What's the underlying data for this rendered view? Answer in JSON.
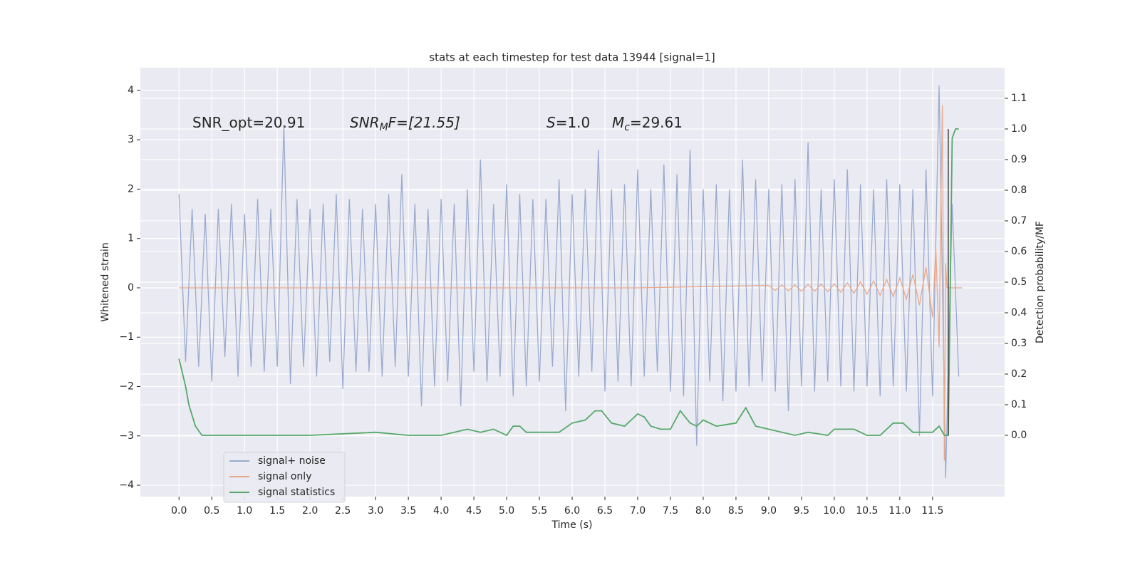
{
  "chart_data": {
    "type": "line",
    "title": "stats at each timestep for test data 13944 [signal=1]",
    "xlabel": "Time (s)",
    "ylabel": "Whitened strain",
    "y2label": "Detection probability/MF",
    "annotations": [
      {
        "base": "SNR_opt=20.91"
      },
      {
        "base": "SNR",
        "sub": "M",
        "rest": "F=[21.55]"
      },
      {
        "base": "S",
        "rest": "=1.0"
      },
      {
        "base": "M",
        "sub": "c",
        "rest": "=29.61"
      }
    ],
    "xlim": [
      -0.59,
      12.6
    ],
    "ylim": [
      -4.23,
      4.46
    ],
    "y2lim": [
      -0.2,
      1.2
    ],
    "xticks": [
      {
        "value": 0,
        "label": "0.0"
      },
      0.5,
      {
        "value": 1,
        "label": "1.0"
      },
      1.5,
      {
        "value": 2,
        "label": "2.0"
      },
      2.5,
      {
        "value": 3,
        "label": "3.0"
      },
      3.5,
      {
        "value": 4,
        "label": "4.0"
      },
      4.5,
      {
        "value": 5,
        "label": "5.0"
      },
      5.5,
      {
        "value": 6,
        "label": "6.0"
      },
      6.5,
      {
        "value": 7,
        "label": "7.0"
      },
      7.5,
      {
        "value": 8,
        "label": "8.0"
      },
      8.5,
      {
        "value": 9,
        "label": "9.0"
      },
      9.5,
      {
        "value": 10,
        "label": "10.0"
      },
      10.5,
      {
        "value": 11,
        "label": "11.0"
      },
      11.5
    ],
    "yticks": [
      {
        "value": -4,
        "label": "−4"
      },
      {
        "value": -3,
        "label": "−3"
      },
      {
        "value": -2,
        "label": "−2"
      },
      {
        "value": -1,
        "label": "−1"
      },
      0,
      1,
      2,
      3,
      4
    ],
    "y2ticks": [
      {
        "value": 0,
        "label": "0.0"
      },
      0.1,
      0.2,
      0.3,
      0.4,
      0.5,
      0.6,
      0.7,
      0.8,
      0.9,
      {
        "value": 1,
        "label": "1.0"
      },
      1.1
    ],
    "grid": true,
    "legend": "lower left",
    "series": [
      {
        "name": "signal+ noise",
        "color": "#9aabd0",
        "x": [
          0.0,
          0.1,
          0.2,
          0.3,
          0.4,
          0.5,
          0.6,
          0.7,
          0.8,
          0.9,
          1.0,
          1.1,
          1.2,
          1.3,
          1.4,
          1.5,
          1.6,
          1.7,
          1.8,
          1.9,
          2.0,
          2.1,
          2.2,
          2.3,
          2.4,
          2.5,
          2.6,
          2.7,
          2.8,
          2.9,
          3.0,
          3.1,
          3.2,
          3.3,
          3.4,
          3.5,
          3.6,
          3.7,
          3.8,
          3.9,
          4.0,
          4.1,
          4.2,
          4.3,
          4.4,
          4.5,
          4.6,
          4.7,
          4.8,
          4.9,
          5.0,
          5.1,
          5.2,
          5.3,
          5.4,
          5.5,
          5.6,
          5.7,
          5.8,
          5.9,
          6.0,
          6.1,
          6.2,
          6.3,
          6.4,
          6.5,
          6.6,
          6.7,
          6.8,
          6.9,
          7.0,
          7.1,
          7.2,
          7.3,
          7.4,
          7.5,
          7.6,
          7.7,
          7.8,
          7.9,
          8.0,
          8.1,
          8.2,
          8.3,
          8.4,
          8.5,
          8.6,
          8.7,
          8.8,
          8.9,
          9.0,
          9.1,
          9.2,
          9.3,
          9.4,
          9.5,
          9.6,
          9.7,
          9.8,
          9.9,
          10.0,
          10.1,
          10.2,
          10.3,
          10.4,
          10.5,
          10.6,
          10.7,
          10.8,
          10.9,
          11.0,
          11.1,
          11.2,
          11.3,
          11.4,
          11.5,
          11.6,
          11.7,
          11.8,
          11.9
        ],
        "values": [
          1.9,
          -1.5,
          1.6,
          -1.6,
          1.5,
          -1.9,
          1.6,
          -1.4,
          1.7,
          -1.8,
          1.5,
          -1.6,
          1.8,
          -1.7,
          1.6,
          -1.6,
          3.3,
          -1.95,
          1.8,
          -1.6,
          1.6,
          -1.8,
          1.7,
          -1.5,
          1.9,
          -2.05,
          1.8,
          -1.7,
          1.6,
          -1.7,
          1.7,
          -1.8,
          1.9,
          -1.6,
          2.3,
          -1.8,
          1.7,
          -2.4,
          1.6,
          -2.0,
          1.8,
          -1.9,
          1.7,
          -2.4,
          2.0,
          -1.7,
          2.6,
          -1.9,
          1.7,
          -1.8,
          2.1,
          -2.2,
          1.9,
          -2.0,
          1.8,
          -1.9,
          1.8,
          -1.6,
          2.2,
          -2.5,
          1.9,
          -1.8,
          2.0,
          -1.7,
          2.8,
          -2.1,
          2.0,
          -1.9,
          2.1,
          -2.0,
          2.4,
          -1.8,
          2.0,
          -1.7,
          2.5,
          -2.1,
          2.3,
          -2.2,
          2.8,
          -3.2,
          2.0,
          -1.9,
          2.1,
          -2.3,
          2.0,
          -2.1,
          2.6,
          -2.0,
          2.2,
          -1.9,
          2.0,
          -2.1,
          2.1,
          -2.5,
          2.2,
          -2.0,
          2.95,
          -2.1,
          2.0,
          -1.9,
          2.2,
          -2.0,
          2.4,
          -2.1,
          2.1,
          -2.0,
          2.0,
          -2.2,
          2.2,
          -2.0,
          2.1,
          -2.1,
          2.0,
          -3.0,
          2.4,
          -2.2,
          4.1,
          -3.85,
          1.7,
          -1.8
        ]
      },
      {
        "name": "signal only",
        "color": "#e8a98a",
        "x": [
          0.0,
          7.0,
          9.0,
          9.1,
          9.2,
          9.3,
          9.4,
          9.5,
          9.6,
          9.7,
          9.8,
          9.9,
          10.0,
          10.1,
          10.2,
          10.3,
          10.4,
          10.5,
          10.6,
          10.7,
          10.8,
          10.9,
          11.0,
          11.1,
          11.2,
          11.3,
          11.4,
          11.5,
          11.55,
          11.6,
          11.63,
          11.65,
          11.68,
          11.7,
          11.72,
          11.95
        ],
        "values": [
          0,
          0,
          0.05,
          -0.05,
          0.06,
          -0.06,
          0.06,
          -0.07,
          0.07,
          -0.07,
          0.08,
          -0.08,
          0.08,
          -0.09,
          0.1,
          -0.11,
          0.12,
          -0.13,
          0.14,
          -0.15,
          0.17,
          -0.18,
          0.2,
          -0.23,
          0.27,
          -0.35,
          0.42,
          -0.6,
          0.8,
          -1.2,
          2.0,
          3.7,
          -3.5,
          0.5,
          0,
          0
        ]
      },
      {
        "name": "signal statistics",
        "color": "#55a868",
        "axis": "y2",
        "x": [
          0.0,
          0.1,
          0.15,
          0.25,
          0.35,
          0.5,
          1.0,
          2.0,
          3.0,
          3.5,
          4.0,
          4.2,
          4.4,
          4.6,
          4.8,
          5.0,
          5.1,
          5.2,
          5.3,
          5.8,
          6.0,
          6.2,
          6.35,
          6.45,
          6.6,
          6.8,
          7.0,
          7.1,
          7.2,
          7.35,
          7.5,
          7.65,
          7.8,
          7.9,
          8.0,
          8.2,
          8.5,
          8.65,
          8.8,
          9.0,
          9.4,
          9.6,
          9.9,
          10.0,
          10.3,
          10.5,
          10.7,
          10.9,
          11.05,
          11.2,
          11.5,
          11.6,
          11.68,
          11.74,
          11.8,
          11.85,
          11.9
        ],
        "values": [
          0.25,
          0.16,
          0.1,
          0.03,
          0.0,
          0.0,
          0.0,
          0.0,
          0.01,
          0.0,
          0.0,
          0.01,
          0.02,
          0.01,
          0.02,
          0.0,
          0.03,
          0.03,
          0.01,
          0.01,
          0.04,
          0.05,
          0.08,
          0.08,
          0.04,
          0.03,
          0.07,
          0.06,
          0.03,
          0.02,
          0.02,
          0.08,
          0.04,
          0.03,
          0.05,
          0.03,
          0.04,
          0.09,
          0.03,
          0.02,
          0.0,
          0.01,
          0.0,
          0.02,
          0.02,
          0.0,
          0.0,
          0.04,
          0.04,
          0.01,
          0.01,
          0.03,
          0.0,
          0.0,
          0.97,
          1.0,
          1.0
        ]
      }
    ],
    "vline": {
      "x": 11.74,
      "ymin": 0,
      "ymax": 1,
      "axis": "y2",
      "color": "#444444"
    }
  }
}
